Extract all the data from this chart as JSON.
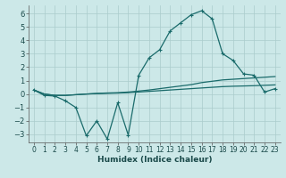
{
  "xlabel": "Humidex (Indice chaleur)",
  "background_color": "#cce8e8",
  "grid_color": "#aacccc",
  "line_color": "#1a6b6b",
  "xlim": [
    -0.5,
    23.5
  ],
  "ylim": [
    -3.6,
    6.6
  ],
  "yticks": [
    -3,
    -2,
    -1,
    0,
    1,
    2,
    3,
    4,
    5,
    6
  ],
  "xticks": [
    0,
    1,
    2,
    3,
    4,
    5,
    6,
    7,
    8,
    9,
    10,
    11,
    12,
    13,
    14,
    15,
    16,
    17,
    18,
    19,
    20,
    21,
    22,
    23
  ],
  "curve1_x": [
    0,
    1,
    2,
    3,
    4,
    5,
    6,
    7,
    8,
    9,
    10,
    11,
    12,
    13,
    14,
    15,
    16,
    17,
    18,
    19,
    20,
    21,
    22,
    23
  ],
  "curve1_y": [
    0.3,
    -0.1,
    -0.15,
    -0.5,
    -1.0,
    -3.1,
    -2.0,
    -3.35,
    -0.65,
    -3.05,
    1.4,
    2.7,
    3.3,
    4.7,
    5.3,
    5.9,
    6.2,
    5.6,
    3.0,
    2.5,
    1.5,
    1.4,
    0.15,
    0.4
  ],
  "curve2_x": [
    0,
    1,
    2,
    3,
    4,
    5,
    6,
    7,
    8,
    9,
    10,
    11,
    12,
    13,
    14,
    15,
    16,
    17,
    18,
    19,
    20,
    21,
    22,
    23
  ],
  "curve2_y": [
    0.3,
    0.0,
    -0.1,
    -0.1,
    -0.05,
    0.0,
    0.05,
    0.08,
    0.1,
    0.15,
    0.22,
    0.3,
    0.4,
    0.5,
    0.6,
    0.7,
    0.85,
    0.95,
    1.05,
    1.1,
    1.15,
    1.2,
    1.25,
    1.3
  ],
  "curve3_x": [
    0,
    1,
    2,
    3,
    4,
    5,
    6,
    7,
    8,
    9,
    10,
    11,
    12,
    13,
    14,
    15,
    16,
    17,
    18,
    19,
    20,
    21,
    22,
    23
  ],
  "curve3_y": [
    0.3,
    0.0,
    -0.1,
    -0.1,
    -0.05,
    0.0,
    0.03,
    0.05,
    0.07,
    0.1,
    0.15,
    0.2,
    0.25,
    0.3,
    0.35,
    0.4,
    0.45,
    0.5,
    0.55,
    0.58,
    0.6,
    0.62,
    0.65,
    0.68
  ]
}
